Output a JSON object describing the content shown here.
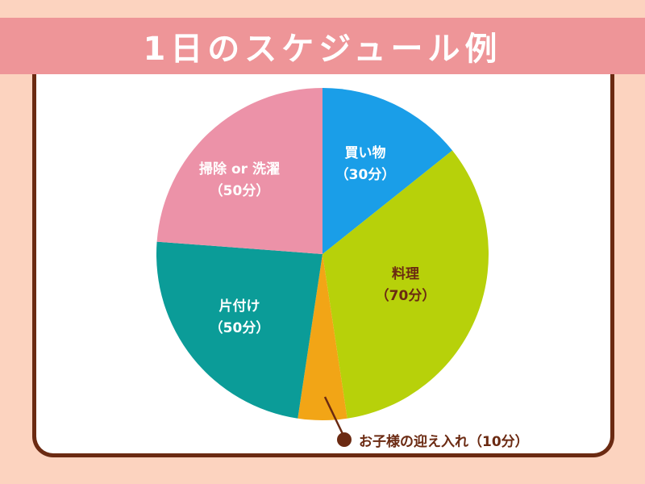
{
  "title": "1日のスケジュール例",
  "colors": {
    "background": "#fcd3bf",
    "banner": "#ee9598",
    "card_border": "#6b2a12",
    "label_dark": "#6b2a12",
    "label_light": "#ffffff"
  },
  "chart_data": {
    "type": "pie",
    "unit": "分",
    "slices": [
      {
        "name": "買い物",
        "value": 30,
        "value_label": "（30分）",
        "color": "#1a9ee8",
        "text_color": "#ffffff"
      },
      {
        "name": "料理",
        "value": 70,
        "value_label": "（70分）",
        "color": "#b7d10a",
        "text_color": "#6b2a12"
      },
      {
        "name": "お子様の迎え入れ",
        "value": 10,
        "value_label": "（10分）",
        "color": "#f2a516",
        "text_color": "#6b2a12"
      },
      {
        "name": "片付け",
        "value": 50,
        "value_label": "（50分）",
        "color": "#0b9c98",
        "text_color": "#ffffff"
      },
      {
        "name": "掃除 or 洗濯",
        "value": 50,
        "value_label": "（50分）",
        "color": "#ec92a8",
        "text_color": "#ffffff"
      }
    ],
    "callout": "お子様の迎え入れ（10分）"
  }
}
